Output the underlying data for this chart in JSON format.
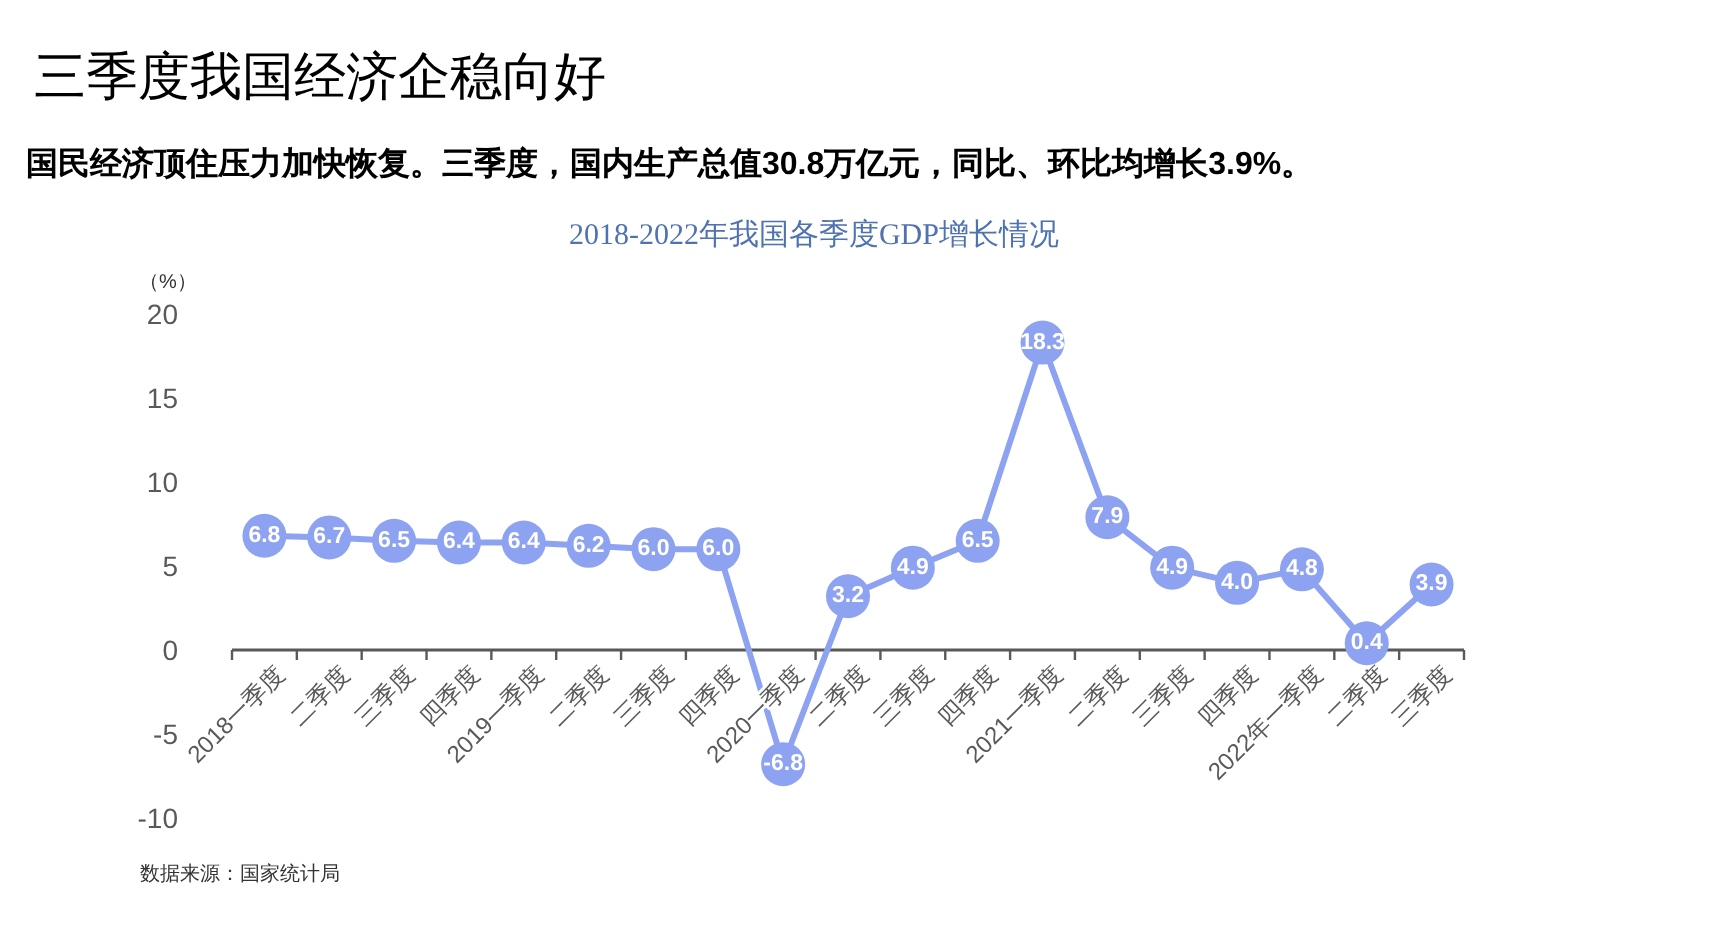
{
  "chart_data": {
    "type": "line",
    "title": "三季度我国经济企稳向好",
    "subtitle": "国民经济顶住压力加快恢复。三季度，国内生产总值30.8万亿元，同比、环比均增长3.9%。",
    "annotations": [
      "2018-2022年我国各季度GDP增长情况",
      "数据来源：国家统计局"
    ],
    "ylabel": "（%）",
    "categories": [
      "2018一季度",
      "二季度",
      "三季度",
      "四季度",
      "2019一季度",
      "二季度",
      "三季度",
      "四季度",
      "2020一季度",
      "二季度",
      "三季度",
      "四季度",
      "2021一季度",
      "二季度",
      "三季度",
      "四季度",
      "2022年一季度",
      "二季度",
      "三季度"
    ],
    "values": [
      6.8,
      6.7,
      6.5,
      6.4,
      6.4,
      6.2,
      6.0,
      6.0,
      -6.8,
      3.2,
      4.9,
      6.5,
      18.3,
      7.9,
      4.9,
      4.0,
      4.8,
      0.4,
      3.9
    ],
    "value_labels": [
      "6.8",
      "6.7",
      "6.5",
      "6.4",
      "6.4",
      "6.2",
      "6.0",
      "6.0",
      "-6.8",
      "3.2",
      "4.9",
      "6.5",
      "18.3",
      "7.9",
      "4.9",
      "4.0",
      "4.8",
      "0.4",
      "3.9"
    ],
    "color": "#8da2f0",
    "ylim": [
      -10,
      20
    ],
    "yticks": [
      -10,
      -5,
      0,
      5,
      10,
      15,
      20
    ],
    "marker": "circle",
    "line_style": "solid"
  }
}
